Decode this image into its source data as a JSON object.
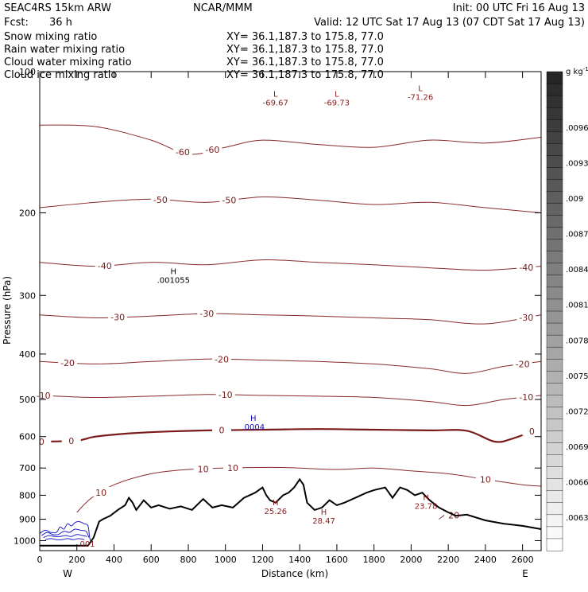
{
  "header": {
    "model": "SEAC4RS 15km ARW",
    "org": "NCAR/MMM",
    "init": "Init: 00 UTC Fri 16 Aug 13",
    "fcst_label": "Fcst:",
    "fcst_value": "36 h",
    "valid": "Valid: 12 UTC Sat 17 Aug 13 (07 CDT Sat 17 Aug 13)"
  },
  "fields": [
    {
      "name": "Snow mixing ratio",
      "xy": "XY=  36.1,187.3 to 175.8, 77.0",
      "color": "#000000"
    },
    {
      "name": "Rain water mixing ratio",
      "xy": "XY=  36.1,187.3 to 175.8, 77.0",
      "color": "#d01010"
    },
    {
      "name": "Cloud water mixing ratio",
      "xy": "XY=  36.1,187.3 to 175.8, 77.0",
      "color": "#1010d0"
    },
    {
      "name": "Cloud ice mixing ratio",
      "xy": "XY=  36.1,187.3 to 175.8, 77.0",
      "color": "#000000"
    }
  ],
  "colors": {
    "contour": "#8b2a2a",
    "contour_zero": "#7a1a1a",
    "terrain": "#000000",
    "cloud_water": "#2020d0",
    "label_blue": "#1010c0",
    "frame": "#000000"
  },
  "chart_data": {
    "type": "line",
    "xlabel": "Distance (km)",
    "ylabel": "Pressure (hPa)",
    "xlim": [
      0,
      2700
    ],
    "ylim": [
      1050,
      100
    ],
    "y_scale": "log",
    "x_ticks": [
      "0",
      "200",
      "400",
      "600",
      "800",
      "1000",
      "1200",
      "1400",
      "1600",
      "1800",
      "2000",
      "2200",
      "2400",
      "2600"
    ],
    "x_end_labels": {
      "left": "W",
      "right": "E"
    },
    "y_ticks": [
      "200",
      "300",
      "400",
      "500",
      "600",
      "700",
      "800",
      "900",
      "1000"
    ],
    "y_top_tick": "100",
    "colorbar": {
      "units": "g kg",
      "units_superscript": "-1",
      "labels": [
        ".0096",
        ".0093",
        ".009",
        ".0087",
        ".0084",
        ".0081",
        ".0078",
        ".0075",
        ".0072",
        ".0069",
        ".0066",
        ".0063"
      ],
      "min_shade": 0.0,
      "max_shade": 0.85
    },
    "temperature_contours": [
      {
        "label": "-60",
        "labels_at": [
          [
            770,
            -60
          ],
          [
            930,
            -60
          ]
        ],
        "pts": [
          [
            0,
            130
          ],
          [
            300,
            131
          ],
          [
            600,
            140
          ],
          [
            800,
            150
          ],
          [
            1000,
            145
          ],
          [
            1200,
            140
          ],
          [
            1500,
            143
          ],
          [
            1800,
            145
          ],
          [
            2100,
            140
          ],
          [
            2400,
            142
          ],
          [
            2700,
            138
          ]
        ]
      },
      {
        "label": "-50",
        "labels_at": [
          [
            650,
            -50
          ],
          [
            1020,
            -50
          ]
        ],
        "pts": [
          [
            0,
            195
          ],
          [
            300,
            190
          ],
          [
            600,
            187
          ],
          [
            900,
            190
          ],
          [
            1200,
            185
          ],
          [
            1500,
            188
          ],
          [
            1800,
            192
          ],
          [
            2100,
            190
          ],
          [
            2400,
            195
          ],
          [
            2700,
            200
          ]
        ]
      },
      {
        "label": "-40",
        "labels_at": [
          [
            350,
            -40
          ],
          [
            2620,
            -40
          ]
        ],
        "pts": [
          [
            0,
            255
          ],
          [
            300,
            260
          ],
          [
            600,
            255
          ],
          [
            900,
            258
          ],
          [
            1200,
            252
          ],
          [
            1500,
            255
          ],
          [
            1800,
            258
          ],
          [
            2100,
            262
          ],
          [
            2400,
            265
          ],
          [
            2700,
            260
          ]
        ]
      },
      {
        "label": "-30",
        "labels_at": [
          [
            420,
            -30
          ],
          [
            900,
            -30
          ],
          [
            2620,
            -30
          ]
        ],
        "pts": [
          [
            0,
            330
          ],
          [
            300,
            335
          ],
          [
            600,
            332
          ],
          [
            900,
            328
          ],
          [
            1200,
            330
          ],
          [
            1500,
            332
          ],
          [
            1800,
            335
          ],
          [
            2100,
            338
          ],
          [
            2400,
            345
          ],
          [
            2700,
            330
          ]
        ]
      },
      {
        "label": "-20",
        "labels_at": [
          [
            150,
            -20
          ],
          [
            980,
            -20
          ],
          [
            2600,
            -20
          ]
        ],
        "pts": [
          [
            0,
            415
          ],
          [
            300,
            420
          ],
          [
            600,
            415
          ],
          [
            900,
            410
          ],
          [
            1200,
            412
          ],
          [
            1500,
            415
          ],
          [
            1800,
            420
          ],
          [
            2100,
            430
          ],
          [
            2300,
            440
          ],
          [
            2500,
            425
          ],
          [
            2700,
            415
          ]
        ]
      },
      {
        "label": "-10",
        "labels_at": [
          [
            20,
            -10
          ],
          [
            1000,
            -10
          ],
          [
            2620,
            -10
          ]
        ],
        "pts": [
          [
            0,
            490
          ],
          [
            300,
            495
          ],
          [
            600,
            492
          ],
          [
            900,
            488
          ],
          [
            1200,
            490
          ],
          [
            1500,
            492
          ],
          [
            1800,
            495
          ],
          [
            2100,
            505
          ],
          [
            2300,
            515
          ],
          [
            2500,
            500
          ],
          [
            2700,
            490
          ]
        ]
      },
      {
        "label": "0",
        "zero": true,
        "labels_at": [
          [
            10,
            0
          ],
          [
            170,
            0
          ],
          [
            980,
            0
          ],
          [
            2650,
            0
          ]
        ],
        "pts": [
          [
            0,
            615
          ],
          [
            200,
            612
          ],
          [
            300,
            600
          ],
          [
            500,
            590
          ],
          [
            700,
            585
          ],
          [
            900,
            582
          ],
          [
            1200,
            580
          ],
          [
            1500,
            578
          ],
          [
            1800,
            580
          ],
          [
            2100,
            582
          ],
          [
            2300,
            583
          ],
          [
            2450,
            615
          ],
          [
            2550,
            605
          ],
          [
            2700,
            575
          ]
        ]
      },
      {
        "label": "10",
        "labels_at": [
          [
            880,
            10
          ],
          [
            1040,
            10
          ],
          [
            2400,
            10
          ],
          [
            330,
            10
          ]
        ],
        "pts": [
          [
            200,
            870
          ],
          [
            280,
            810
          ],
          [
            400,
            760
          ],
          [
            600,
            720
          ],
          [
            800,
            705
          ],
          [
            1000,
            700
          ],
          [
            1300,
            698
          ],
          [
            1600,
            705
          ],
          [
            1800,
            700
          ],
          [
            2000,
            710
          ],
          [
            2200,
            720
          ],
          [
            2400,
            740
          ],
          [
            2600,
            760
          ],
          [
            2700,
            765
          ]
        ]
      },
      {
        "label": "20",
        "labels_at": [
          [
            2230,
            20
          ]
        ],
        "pts": [
          [
            2150,
            900
          ],
          [
            2200,
            875
          ],
          [
            2260,
            890
          ]
        ]
      }
    ],
    "terrain": {
      "distance_km": [
        0,
        120,
        260,
        290,
        320,
        340,
        380,
        420,
        460,
        480,
        500,
        520,
        560,
        600,
        640,
        700,
        760,
        820,
        880,
        930,
        980,
        1040,
        1100,
        1160,
        1200,
        1220,
        1240,
        1270,
        1310,
        1340,
        1370,
        1400,
        1420,
        1440,
        1480,
        1520,
        1560,
        1600,
        1640,
        1700,
        1760,
        1800,
        1860,
        1900,
        1940,
        1980,
        2020,
        2060,
        2100,
        2150,
        2200,
        2240,
        2300,
        2400,
        2500,
        2600,
        2700
      ],
      "pressure_hpa": [
        1025,
        1025,
        1025,
        985,
        910,
        900,
        885,
        860,
        840,
        810,
        830,
        860,
        820,
        850,
        840,
        855,
        845,
        860,
        815,
        850,
        840,
        850,
        810,
        790,
        770,
        800,
        820,
        830,
        800,
        790,
        770,
        740,
        760,
        830,
        860,
        850,
        820,
        840,
        830,
        810,
        790,
        780,
        770,
        810,
        770,
        780,
        800,
        790,
        820,
        850,
        870,
        885,
        880,
        905,
        920,
        930,
        945
      ]
    },
    "annotations": [
      {
        "kind": "H",
        "x": 720,
        "p": 270,
        "value": ".001055",
        "color": "black"
      },
      {
        "kind": "H",
        "x": 1150,
        "p": 555,
        "value": ".0004",
        "color": "blue"
      },
      {
        "kind": "L",
        "x": 1270,
        "p": 113,
        "value": "-69.67",
        "color": "red"
      },
      {
        "kind": "L",
        "x": 1600,
        "p": 113,
        "value": "-69.73",
        "color": "red"
      },
      {
        "kind": "L",
        "x": 2050,
        "p": 110,
        "value": "-71.26",
        "color": "red"
      },
      {
        "kind": "H",
        "x": 1270,
        "p": 840,
        "value": "25.26",
        "color": "red"
      },
      {
        "kind": "H",
        "x": 1530,
        "p": 880,
        "value": "28.47",
        "color": "red"
      },
      {
        "kind": "H",
        "x": 2080,
        "p": 820,
        "value": "23.78",
        "color": "red"
      },
      {
        "kind": "",
        "x": 250,
        "p": 1030,
        "value": ".001",
        "color": "red"
      }
    ],
    "cloud_water_contours": [
      {
        "x": [
          0,
          30,
          60,
          90,
          110,
          130,
          150,
          170,
          190,
          210,
          240,
          260,
          270,
          280
        ],
        "p": [
          965,
          950,
          960,
          960,
          935,
          945,
          920,
          930,
          915,
          910,
          920,
          930,
          990,
          1010
        ]
      },
      {
        "x": [
          10,
          40,
          70,
          100,
          130,
          160,
          190,
          220,
          250,
          265
        ],
        "p": [
          975,
          960,
          970,
          970,
          955,
          960,
          945,
          950,
          955,
          985
        ]
      },
      {
        "x": [
          20,
          50,
          80,
          110,
          140,
          170,
          200,
          230,
          255
        ],
        "p": [
          985,
          975,
          980,
          980,
          975,
          980,
          970,
          975,
          980
        ]
      },
      {
        "x": [
          30,
          60,
          90,
          120,
          150,
          180,
          210,
          240
        ],
        "p": [
          995,
          990,
          995,
          995,
          990,
          995,
          990,
          995
        ]
      }
    ]
  }
}
